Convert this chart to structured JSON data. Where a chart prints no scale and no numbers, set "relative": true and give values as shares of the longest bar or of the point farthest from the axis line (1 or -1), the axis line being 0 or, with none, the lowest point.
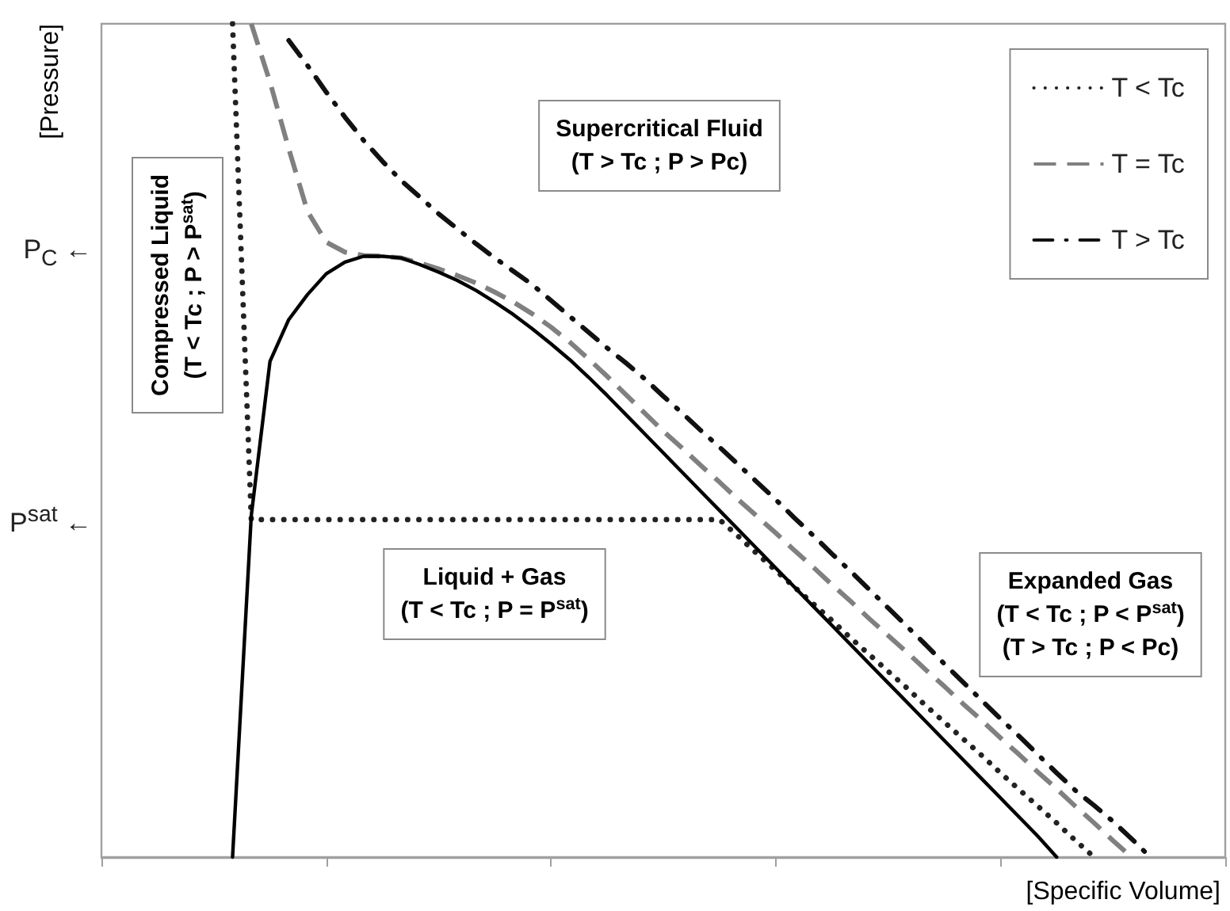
{
  "chart_data": {
    "type": "line",
    "xlabel": "[Specific Volume]",
    "ylabel": "[Pressure]",
    "relative": true,
    "categories": [
      null,
      null,
      null,
      null,
      null,
      null,
      null,
      null,
      null,
      null,
      null,
      null,
      null,
      null,
      null,
      null,
      null,
      null,
      null,
      null,
      null,
      null,
      null,
      null,
      null,
      null,
      null,
      null,
      null,
      null,
      null,
      null,
      null,
      null,
      null,
      null,
      null,
      null,
      null,
      null,
      null,
      null,
      null,
      null,
      null,
      null,
      null,
      null,
      null,
      null,
      null,
      null,
      null,
      null,
      null,
      null,
      null,
      null,
      null,
      null,
      null
    ],
    "legend": "top right",
    "series": [
      {
        "name": "T < Tc",
        "color": "#222222",
        "line_style": "dotted",
        "values": [
          null,
          null,
          null,
          null,
          null,
          null,
          null,
          1,
          0.405,
          0.405,
          0.405,
          0.405,
          0.405,
          0.405,
          0.405,
          0.405,
          0.405,
          0.405,
          0.405,
          0.405,
          0.405,
          0.405,
          0.405,
          0.405,
          0.405,
          0.405,
          0.405,
          0.405,
          0.405,
          0.405,
          0.405,
          0.405,
          0.405,
          0.405,
          0.385,
          0.364,
          0.344,
          0.324,
          0.304,
          0.284,
          0.263,
          0.243,
          0.223,
          0.203,
          0.182,
          0.162,
          0.142,
          0.122,
          0.101,
          0.081,
          0.061,
          0.041,
          0.02,
          0,
          null,
          null,
          null,
          null,
          null,
          null,
          null
        ]
      },
      {
        "name": "T = Tc",
        "color": "#808080",
        "line_style": "dashed",
        "values": [
          null,
          null,
          null,
          null,
          null,
          null,
          null,
          null,
          1,
          0.93,
          0.85,
          0.775,
          0.738,
          0.726,
          0.722,
          0.721,
          0.719,
          0.713,
          0.706,
          0.698,
          0.689,
          0.678,
          0.666,
          0.652,
          0.636,
          0.618,
          0.598,
          0.577,
          0.555,
          0.533,
          0.511,
          0.491,
          0.47,
          0.45,
          0.429,
          0.409,
          0.389,
          0.368,
          0.348,
          0.327,
          0.307,
          0.286,
          0.266,
          0.246,
          0.225,
          0.205,
          0.184,
          0.164,
          0.143,
          0.123,
          0.102,
          0.082,
          0.061,
          0.041,
          0.02,
          0,
          null,
          null,
          null,
          null,
          null
        ]
      },
      {
        "name": "T > Tc",
        "color": "#111111",
        "line_style": "dashdot",
        "values": [
          null,
          null,
          null,
          null,
          null,
          null,
          null,
          null,
          null,
          null,
          0.98,
          0.95,
          0.918,
          0.888,
          0.86,
          0.835,
          0.812,
          0.792,
          0.772,
          0.754,
          0.736,
          0.719,
          0.703,
          0.687,
          0.668,
          0.649,
          0.63,
          0.611,
          0.593,
          0.574,
          0.553,
          0.533,
          0.512,
          0.492,
          0.471,
          0.45,
          0.429,
          0.407,
          0.386,
          0.364,
          0.343,
          0.321,
          0.299,
          0.277,
          0.255,
          0.232,
          0.21,
          0.188,
          0.166,
          0.145,
          0.123,
          0.101,
          0.08,
          0.062,
          0.043,
          0.022,
          0,
          null,
          null,
          null,
          null
        ]
      },
      {
        "color": "#000000",
        "line_style": "solid",
        "values": [
          null,
          null,
          null,
          null,
          null,
          null,
          null,
          0,
          0.41,
          0.595,
          0.645,
          0.675,
          0.7,
          0.714,
          0.721,
          0.721,
          0.719,
          0.711,
          0.702,
          0.692,
          0.68,
          0.666,
          0.651,
          0.634,
          0.616,
          0.597,
          0.576,
          0.554,
          0.531,
          0.508,
          0.485,
          0.462,
          0.439,
          0.416,
          0.393,
          0.37,
          0.347,
          0.324,
          0.301,
          0.278,
          0.255,
          0.232,
          0.209,
          0.186,
          0.163,
          0.14,
          0.117,
          0.094,
          0.071,
          0.048,
          0.025,
          0,
          null,
          null,
          null,
          null,
          null,
          null,
          null,
          null,
          null
        ]
      }
    ],
    "annotations": [
      "P$_{C}$ ←",
      "P$^{sat}$ ←",
      "Supercritical Fluid\n(T > Tc ; P > Pc)",
      "Compressed Liquid\n(T < Tc ; P > P$^{sat}$)",
      "Liquid + Gas\n(T < Tc ; P = P$^{sat}$)",
      "Expanded Gas\n(T < Tc ; P < P$^{sat}$)\n(T > Tc ; P < Pc)"
    ]
  }
}
